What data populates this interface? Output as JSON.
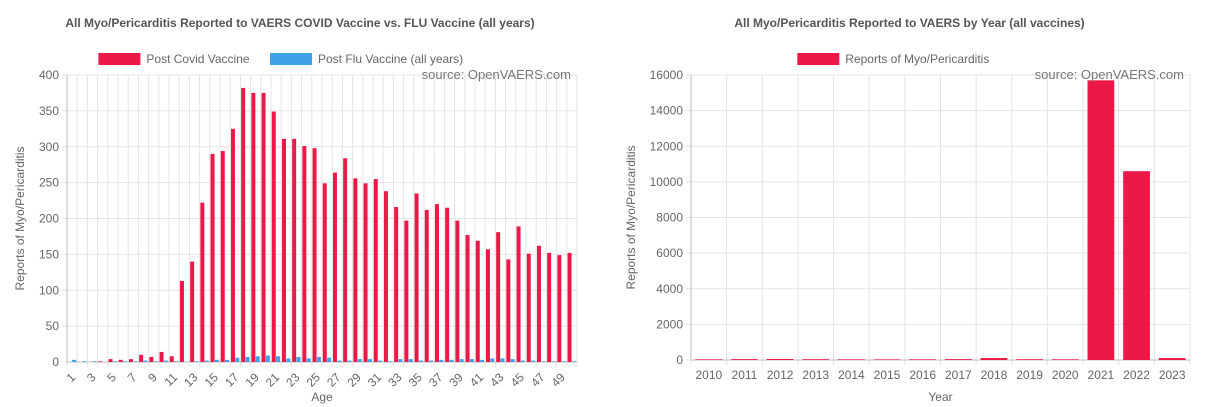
{
  "chart_data": [
    {
      "type": "bar",
      "title": "All Myo/Pericarditis Reported to VAERS COVID Vaccine vs. FLU Vaccine (all years)",
      "annotation": "source: OpenVAERS.com",
      "xlabel": "Age",
      "ylabel": "Reports of Myo/Pericarditis",
      "ylim": [
        0,
        400
      ],
      "yticks": [
        0,
        50,
        100,
        150,
        200,
        250,
        300,
        350,
        400
      ],
      "legend_position": "top",
      "grid": true,
      "categories": [
        "1",
        "2",
        "3",
        "4",
        "5",
        "6",
        "7",
        "8",
        "9",
        "10",
        "11",
        "12",
        "13",
        "14",
        "15",
        "16",
        "17",
        "18",
        "19",
        "20",
        "21",
        "22",
        "23",
        "24",
        "25",
        "26",
        "27",
        "28",
        "29",
        "30",
        "31",
        "32",
        "33",
        "34",
        "35",
        "36",
        "37",
        "38",
        "39",
        "40",
        "41",
        "42",
        "43",
        "44",
        "45",
        "46",
        "47",
        "48",
        "49",
        "50"
      ],
      "xtick_labels": [
        "1",
        "3",
        "5",
        "7",
        "9",
        "11",
        "13",
        "15",
        "17",
        "19",
        "21",
        "23",
        "25",
        "27",
        "29",
        "31",
        "33",
        "35",
        "37",
        "39",
        "41",
        "43",
        "45",
        "47",
        "49"
      ],
      "series": [
        {
          "name": "Post Covid Vaccine",
          "color": "#EC1848",
          "values": [
            0,
            0,
            0,
            1,
            4,
            3,
            4,
            10,
            7,
            14,
            8,
            113,
            140,
            222,
            290,
            294,
            325,
            382,
            375,
            375,
            349,
            311,
            311,
            301,
            298,
            249,
            264,
            284,
            256,
            249,
            255,
            238,
            216,
            197,
            235,
            212,
            220,
            215,
            197,
            177,
            169,
            157,
            181,
            143,
            189,
            151,
            162,
            152,
            149,
            152
          ]
        },
        {
          "name": "Post Flu Vaccine (all years)",
          "color": "#3FA0E8",
          "values": [
            3,
            1,
            1,
            0,
            1,
            1,
            1,
            2,
            1,
            2,
            1,
            0,
            1,
            2,
            3,
            3,
            6,
            7,
            8,
            9,
            8,
            5,
            7,
            5,
            7,
            6,
            2,
            2,
            4,
            4,
            2,
            1,
            4,
            4,
            2,
            2,
            3,
            3,
            4,
            4,
            3,
            5,
            5,
            4,
            2,
            2,
            1,
            1,
            1,
            1
          ]
        }
      ]
    },
    {
      "type": "bar",
      "title": "All Myo/Pericarditis Reported to VAERS by Year (all vaccines)",
      "annotation": "source: OpenVAERS.com",
      "xlabel": "Year",
      "ylabel": "Reports of Myo/Pericarditis",
      "ylim": [
        0,
        16000
      ],
      "yticks": [
        0,
        2000,
        4000,
        6000,
        8000,
        10000,
        12000,
        14000,
        16000
      ],
      "legend_position": "top",
      "grid": true,
      "categories": [
        "2010",
        "2011",
        "2012",
        "2013",
        "2014",
        "2015",
        "2016",
        "2017",
        "2018",
        "2019",
        "2020",
        "2021",
        "2022",
        "2023"
      ],
      "series": [
        {
          "name": "Reports of Myo/Pericarditis",
          "color": "#EC1848",
          "values": [
            40,
            50,
            55,
            45,
            40,
            35,
            40,
            50,
            110,
            45,
            40,
            15700,
            10600,
            110
          ]
        }
      ]
    }
  ]
}
